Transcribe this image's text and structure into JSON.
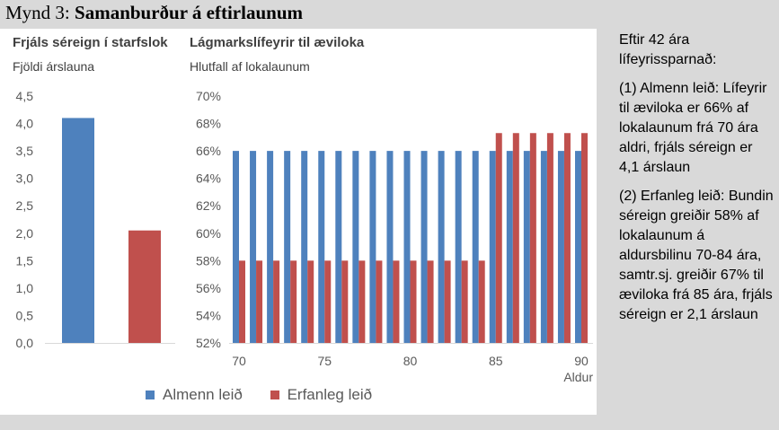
{
  "figure": {
    "prefix": "Mynd 3: ",
    "title": "Samanburður á eftirlaunum"
  },
  "colors": {
    "almenn": "#4e81bd",
    "erfanleg": "#c0504d"
  },
  "legend": [
    {
      "label": "Almenn leið",
      "color": "#4e81bd"
    },
    {
      "label": "Erfanleg leið",
      "color": "#c0504d"
    }
  ],
  "chart_data": [
    {
      "type": "bar",
      "title": "Frjáls séreign í starfslok",
      "ylabel": "Fjöldi árslauna",
      "xlabel": "",
      "ylim": [
        0,
        4.5
      ],
      "yticks": [
        "0,0",
        "0,5",
        "1,0",
        "1,5",
        "2,0",
        "2,5",
        "3,0",
        "3,5",
        "4,0",
        "4,5"
      ],
      "categories": [
        "Almenn leið",
        "Erfanleg leið"
      ],
      "series": [
        {
          "name": "Almenn leið",
          "values": [
            4.1,
            null
          ]
        },
        {
          "name": "Erfanleg leið",
          "values": [
            null,
            2.05
          ]
        }
      ],
      "grid": false
    },
    {
      "type": "bar",
      "title": "Lágmarkslífeyrir til æviloka",
      "ylabel": "Hlutfall af lokalaunum",
      "xlabel": "Aldur",
      "ylim": [
        52,
        70
      ],
      "yticks": [
        "52%",
        "54%",
        "56%",
        "58%",
        "60%",
        "62%",
        "64%",
        "66%",
        "68%",
        "70%"
      ],
      "xticks": [
        "70",
        "75",
        "80",
        "85",
        "90"
      ],
      "x": [
        70,
        71,
        72,
        73,
        74,
        75,
        76,
        77,
        78,
        79,
        80,
        81,
        82,
        83,
        84,
        85,
        86,
        87,
        88,
        89,
        90
      ],
      "series": [
        {
          "name": "Almenn leið",
          "values": [
            66,
            66,
            66,
            66,
            66,
            66,
            66,
            66,
            66,
            66,
            66,
            66,
            66,
            66,
            66,
            66,
            66,
            66,
            66,
            66,
            66
          ]
        },
        {
          "name": "Erfanleg leið",
          "values": [
            58,
            58,
            58,
            58,
            58,
            58,
            58,
            58,
            58,
            58,
            58,
            58,
            58,
            58,
            58,
            67.3,
            67.3,
            67.3,
            67.3,
            67.3,
            67.3
          ]
        }
      ],
      "grid": false
    }
  ],
  "sidebar": {
    "p1": "Eftir 42 ára lífeyrissparnað:",
    "p2": "(1) Almenn leið: Lífeyrir til æviloka er 66% af lokalaunum frá 70 ára aldri, frjáls séreign er 4,1 árslaun",
    "p3": "(2) Erfanleg leið: Bundin séreign greiðir 58% af lokalaunum á aldursbilinu 70-84 ára, samtr.sj. greiðir 67% til æviloka frá 85 ára, frjáls séreign er 2,1 árslaun"
  }
}
